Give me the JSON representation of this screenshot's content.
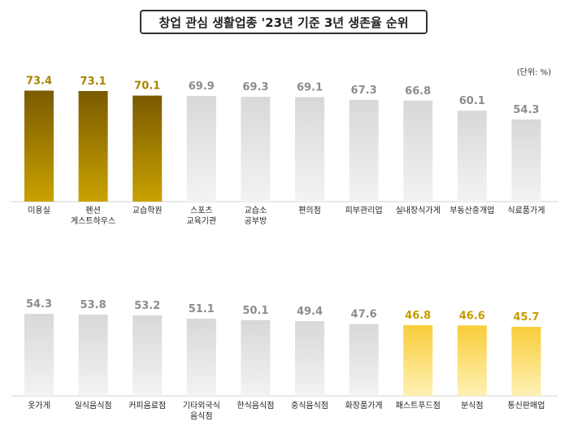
{
  "title": "창업 관심 생활업종 '23년 기준 3년 생존율 순위",
  "unit": "(단위: %)",
  "colors": {
    "top3": "#9c7a00",
    "gray": "#c8c8c8",
    "bottom": "#f5cf4a",
    "label_top": "#a88400",
    "label_gray": "#8c8c8c",
    "label_bottom": "#c79a00"
  },
  "chart_data": [
    {
      "type": "bar",
      "categories": [
        [
          "미용실"
        ],
        [
          "펜션",
          "게스트하우스"
        ],
        [
          "교습학원"
        ],
        [
          "스포츠",
          "교육기관"
        ],
        [
          "교습소",
          "공부방"
        ],
        [
          "편의점"
        ],
        [
          "피부관리업"
        ],
        [
          "실내장식가게"
        ],
        [
          "부동산중개업"
        ],
        [
          "식료품가게"
        ]
      ],
      "values": [
        73.4,
        73.1,
        70.1,
        69.9,
        69.3,
        69.1,
        67.3,
        66.8,
        60.1,
        54.3
      ],
      "value_labels": [
        "73.4",
        "73.1",
        "70.1",
        "69.9",
        "69.3",
        "69.1",
        "67.3",
        "66.8",
        "60.1",
        "54.3"
      ],
      "highlight": [
        "top",
        "top",
        "top",
        "gray",
        "gray",
        "gray",
        "gray",
        "gray",
        "gray",
        "gray"
      ],
      "unit": "%"
    },
    {
      "type": "bar",
      "categories": [
        [
          "옷가게"
        ],
        [
          "일식음식점"
        ],
        [
          "커피음료점"
        ],
        [
          "기타외국식",
          "음식점"
        ],
        [
          "한식음식점"
        ],
        [
          "중식음식점"
        ],
        [
          "화장품가게"
        ],
        [
          "패스트푸드점"
        ],
        [
          "분식점"
        ],
        [
          "통신판매업"
        ]
      ],
      "values": [
        54.3,
        53.8,
        53.2,
        51.1,
        50.1,
        49.4,
        47.6,
        46.8,
        46.6,
        45.7
      ],
      "value_labels": [
        "54.3",
        "53.8",
        "53.2",
        "51.1",
        "50.1",
        "49.4",
        "47.6",
        "46.8",
        "46.6",
        "45.7"
      ],
      "highlight": [
        "gray",
        "gray",
        "gray",
        "gray",
        "gray",
        "gray",
        "gray",
        "bottom",
        "bottom",
        "bottom"
      ],
      "unit": "%"
    }
  ]
}
